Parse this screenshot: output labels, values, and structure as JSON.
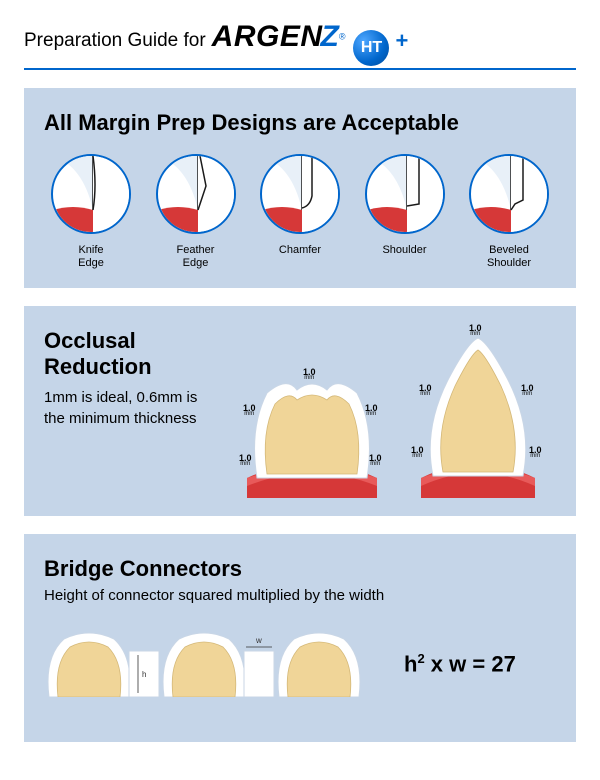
{
  "header": {
    "prep_for": "Preparation Guide for",
    "brand_argen": "ARGEN",
    "brand_z": "Z",
    "ht": "HT",
    "plus": "+"
  },
  "colors": {
    "accent": "#0066cc",
    "panel_bg": "#c5d5e8",
    "tooth_fill": "#f0d598",
    "tooth_outline": "#ffffff",
    "gum": "#d63838",
    "gum_light": "#e85a5a",
    "stroke": "#1a1a1a"
  },
  "margin_panel": {
    "title": "All Margin Prep Designs are Acceptable",
    "items": [
      {
        "label": "Knife\nEdge"
      },
      {
        "label": "Feather\nEdge"
      },
      {
        "label": "Chamfer"
      },
      {
        "label": "Shoulder"
      },
      {
        "label": "Beveled\nShoulder"
      }
    ]
  },
  "occlusal_panel": {
    "title": "Occlusal Reduction",
    "sub": "1mm is ideal, 0.6mm is the minimum thickness",
    "dim_value": "1.0",
    "dim_unit": "mm"
  },
  "bridge_panel": {
    "title": "Bridge Connectors",
    "sub": "Height of connector squared multiplied by the width",
    "formula_h": "h",
    "formula_exp": "2",
    "formula_xw": " x w = 27",
    "h_label": "h",
    "w_label": "w"
  }
}
